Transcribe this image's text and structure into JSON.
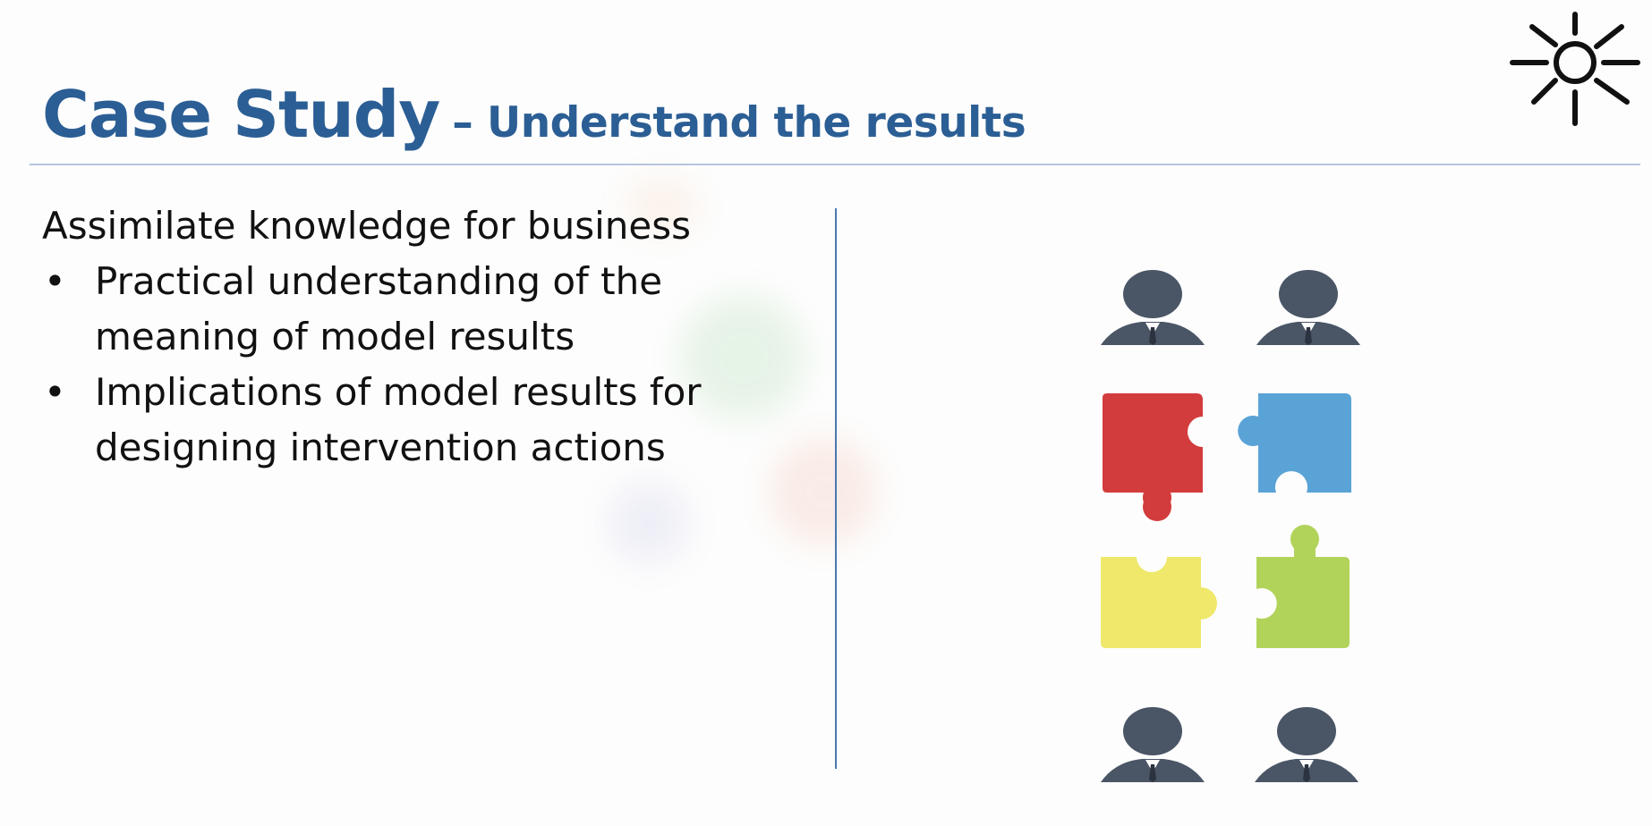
{
  "slide": {
    "title_main": "Case Study",
    "title_sub": "– Understand the results",
    "lead_text": "Assimilate knowledge for business",
    "bullets": [
      {
        "marker": "•",
        "line1": "Practical understanding of the",
        "line2": "meaning of model results"
      },
      {
        "marker": "•",
        "line1": "Implications of model results for",
        "line2": "designing intervention actions"
      }
    ]
  },
  "icons": {
    "corner": "sun-icon",
    "people": "businessperson-icon",
    "puzzle": "puzzle-piece-icon"
  },
  "colors": {
    "title": "#2b5e94",
    "rule": "#b7c4dc",
    "divider": "#4a78b0",
    "person": "#4a5566",
    "puzzle_red": "#d33c3c",
    "puzzle_blue": "#5aa3d6",
    "puzzle_yellow": "#efe86a",
    "puzzle_green": "#b2d35a"
  }
}
